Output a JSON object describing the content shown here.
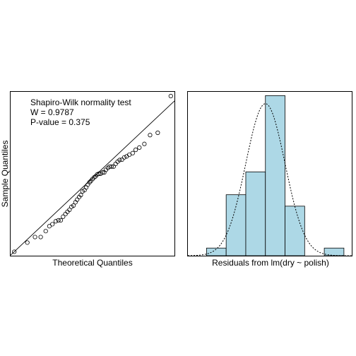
{
  "chart_data": [
    {
      "type": "scatter",
      "title": "",
      "xlabel": "Theoretical Quantiles",
      "ylabel": "Sample Quantiles",
      "xlim": [
        -2.45,
        2.45
      ],
      "ylim": [
        -2.45,
        2.55
      ],
      "annotation": {
        "line1": "Shapiro-Wilk normality test",
        "line2": "W = 0.9787",
        "line3": "P-value = 0.375"
      },
      "reference_line": {
        "intercept": -0.08,
        "slope": 0.96
      },
      "x": [
        -2.34,
        -1.95,
        -1.72,
        -1.55,
        -1.4,
        -1.29,
        -1.2,
        -1.1,
        -1.02,
        -0.95,
        -0.88,
        -0.81,
        -0.75,
        -0.69,
        -0.63,
        -0.57,
        -0.51,
        -0.46,
        -0.4,
        -0.35,
        -0.3,
        -0.24,
        -0.19,
        -0.14,
        -0.09,
        -0.05,
        0.0,
        0.05,
        0.09,
        0.14,
        0.19,
        0.24,
        0.3,
        0.35,
        0.4,
        0.46,
        0.51,
        0.57,
        0.63,
        0.69,
        0.75,
        0.81,
        0.88,
        0.95,
        1.02,
        1.1,
        1.2,
        1.29,
        1.4,
        1.55,
        1.72,
        1.95,
        2.34
      ],
      "y": [
        -2.33,
        -2.05,
        -1.88,
        -1.88,
        -1.7,
        -1.55,
        -1.49,
        -1.4,
        -1.37,
        -1.37,
        -1.26,
        -1.18,
        -1.11,
        -1.05,
        -0.96,
        -0.92,
        -0.82,
        -0.74,
        -0.66,
        -0.6,
        -0.49,
        -0.45,
        -0.37,
        -0.28,
        -0.21,
        -0.17,
        -0.11,
        -0.06,
        -0.03,
        0.03,
        0.05,
        0.05,
        0.09,
        0.09,
        0.17,
        0.23,
        0.27,
        0.27,
        0.27,
        0.35,
        0.42,
        0.47,
        0.48,
        0.55,
        0.58,
        0.63,
        0.68,
        0.78,
        0.85,
        0.96,
        1.23,
        1.3,
        2.42
      ]
    },
    {
      "type": "bar",
      "title": "",
      "xlabel": "Residuals from lm(dry ~ polish)",
      "ylabel": "",
      "bin_edges": [
        -3.0,
        -2.0,
        -1.0,
        0.0,
        1.0,
        2.0,
        3.0,
        4.0
      ],
      "values": [
        0.02,
        0.16,
        0.22,
        0.42,
        0.13,
        0.0,
        0.02
      ],
      "xlim": [
        -3.95,
        4.4
      ],
      "ylim": [
        0,
        0.43
      ],
      "density_curve": {
        "style": "dotted",
        "mean": 0.0,
        "sd": 1.0
      }
    }
  ]
}
